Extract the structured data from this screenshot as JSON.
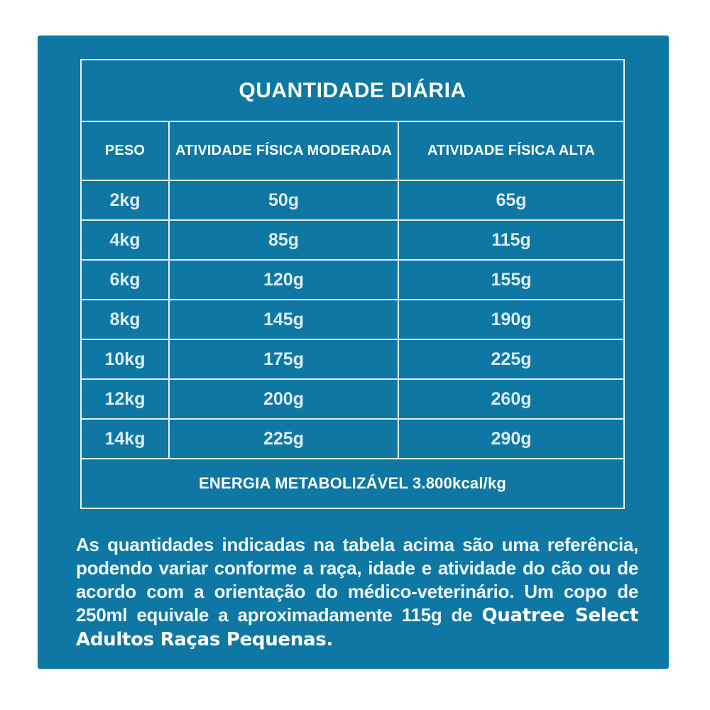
{
  "colors": {
    "panel_background": "#0e77a4",
    "grid_line": "#e4f1f8",
    "heading_text": "#ffffff",
    "data_text": "#ddeef7"
  },
  "table": {
    "title": "QUANTIDADE DIÁRIA",
    "columns": [
      "PESO",
      "ATIVIDADE FÍSICA MODERADA",
      "ATIVIDADE FÍSICA ALTA"
    ],
    "rows": [
      {
        "peso": "2kg",
        "moderada": "50g",
        "alta": "65g"
      },
      {
        "peso": "4kg",
        "moderada": "85g",
        "alta": "115g"
      },
      {
        "peso": "6kg",
        "moderada": "120g",
        "alta": "155g"
      },
      {
        "peso": "8kg",
        "moderada": "145g",
        "alta": "190g"
      },
      {
        "peso": "10kg",
        "moderada": "175g",
        "alta": "225g"
      },
      {
        "peso": "12kg",
        "moderada": "200g",
        "alta": "260g"
      },
      {
        "peso": "14kg",
        "moderada": "225g",
        "alta": "290g"
      }
    ],
    "footer": "ENERGIA METABOLIZÁVEL 3.800kcal/kg"
  },
  "note": {
    "body": "As quantidades indicadas na tabela acima são uma referência, podendo variar conforme a raça, idade e atividade do cão ou de acordo com a orientação do médico-veterinário. Um copo de 250ml equivale a aproximadamente 115g de ",
    "brand": "Quatree Select Adultos Raças Pequenas."
  }
}
